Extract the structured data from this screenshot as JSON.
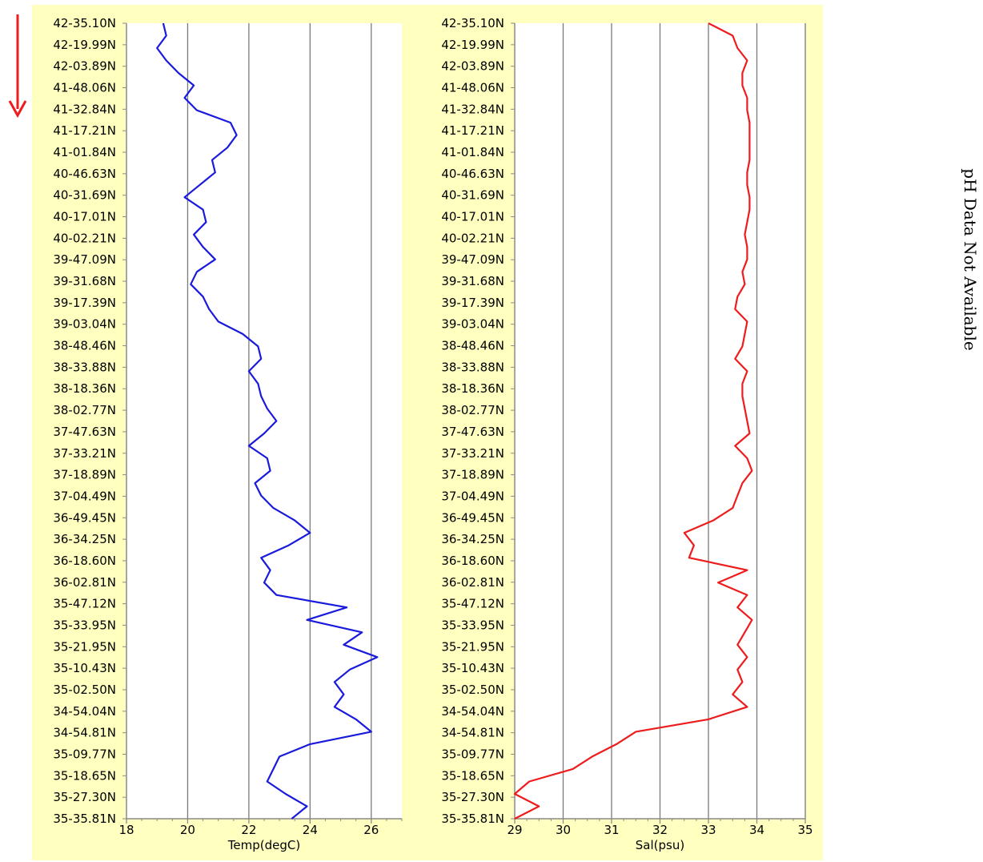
{
  "side_note": "pH Data Not Available",
  "direction_arrow_color": "#ee1c1c",
  "chart_data": [
    {
      "type": "line",
      "orientation": "vertical-profile",
      "xlabel": "Temp(degC)",
      "xlim": [
        18,
        27
      ],
      "xticks": [
        18,
        20,
        22,
        24,
        26
      ],
      "grid": true,
      "color": "#1a1adc",
      "y_labels": [
        "42-35.10N",
        "42-19.99N",
        "42-03.89N",
        "41-48.06N",
        "41-32.84N",
        "41-17.21N",
        "41-01.84N",
        "40-46.63N",
        "40-31.69N",
        "40-17.01N",
        "40-02.21N",
        "39-47.09N",
        "39-31.68N",
        "39-17.39N",
        "39-03.04N",
        "38-48.46N",
        "38-33.88N",
        "38-18.36N",
        "38-02.77N",
        "37-47.63N",
        "37-33.21N",
        "37-18.89N",
        "37-04.49N",
        "36-49.45N",
        "36-34.25N",
        "36-18.60N",
        "36-02.81N",
        "35-47.12N",
        "35-33.95N",
        "35-21.95N",
        "35-10.43N",
        "35-02.50N",
        "34-54.04N",
        "34-54.81N",
        "35-09.77N",
        "35-18.65N",
        "35-27.30N",
        "35-35.81N"
      ],
      "series": [
        {
          "values": [
            19.2,
            19.3,
            19.0,
            19.3,
            19.7,
            20.2,
            19.9,
            20.3,
            21.4,
            21.6,
            21.3,
            20.8,
            20.9,
            20.4,
            19.9,
            20.5,
            20.6,
            20.2,
            20.5,
            20.9,
            20.3,
            20.1,
            20.5,
            20.7,
            21.0,
            21.8,
            22.3,
            22.4,
            22.0,
            22.3,
            22.4,
            22.6,
            22.9,
            22.5,
            22.0,
            22.6,
            22.7,
            22.2,
            22.4,
            22.8,
            23.5,
            24.0,
            23.3,
            22.4,
            22.7,
            22.5,
            22.9,
            25.2,
            23.9,
            25.7,
            25.1,
            26.2,
            25.3,
            24.8,
            25.1,
            24.8,
            25.5,
            26.0,
            24.0,
            23.0,
            22.8,
            22.6,
            23.2,
            23.9,
            23.4
          ]
        }
      ]
    },
    {
      "type": "line",
      "orientation": "vertical-profile",
      "xlabel": "Sal(psu)",
      "xlim": [
        29,
        35
      ],
      "xticks": [
        29,
        30,
        31,
        32,
        33,
        34,
        35
      ],
      "grid": true,
      "color": "#ee1c1c",
      "y_labels": [
        "42-35.10N",
        "42-19.99N",
        "42-03.89N",
        "41-48.06N",
        "41-32.84N",
        "41-17.21N",
        "41-01.84N",
        "40-46.63N",
        "40-31.69N",
        "40-17.01N",
        "40-02.21N",
        "39-47.09N",
        "39-31.68N",
        "39-17.39N",
        "39-03.04N",
        "38-48.46N",
        "38-33.88N",
        "38-18.36N",
        "38-02.77N",
        "37-47.63N",
        "37-33.21N",
        "37-18.89N",
        "37-04.49N",
        "36-49.45N",
        "36-34.25N",
        "36-18.60N",
        "36-02.81N",
        "35-47.12N",
        "35-33.95N",
        "35-21.95N",
        "35-10.43N",
        "35-02.50N",
        "34-54.04N",
        "34-54.81N",
        "35-09.77N",
        "35-18.65N",
        "35-27.30N",
        "35-35.81N"
      ],
      "series": [
        {
          "values": [
            33.0,
            33.5,
            33.6,
            33.8,
            33.7,
            33.7,
            33.8,
            33.8,
            33.85,
            33.85,
            33.85,
            33.85,
            33.8,
            33.8,
            33.85,
            33.85,
            33.8,
            33.75,
            33.8,
            33.8,
            33.7,
            33.75,
            33.6,
            33.55,
            33.8,
            33.75,
            33.7,
            33.55,
            33.8,
            33.7,
            33.7,
            33.75,
            33.8,
            33.85,
            33.55,
            33.8,
            33.9,
            33.7,
            33.6,
            33.5,
            33.1,
            32.5,
            32.7,
            32.6,
            33.8,
            33.2,
            33.8,
            33.6,
            33.9,
            33.75,
            33.6,
            33.8,
            33.6,
            33.7,
            33.5,
            33.8,
            33.0,
            31.5,
            31.1,
            30.6,
            30.2,
            29.3,
            29.0,
            29.5,
            29.0
          ]
        }
      ]
    }
  ]
}
